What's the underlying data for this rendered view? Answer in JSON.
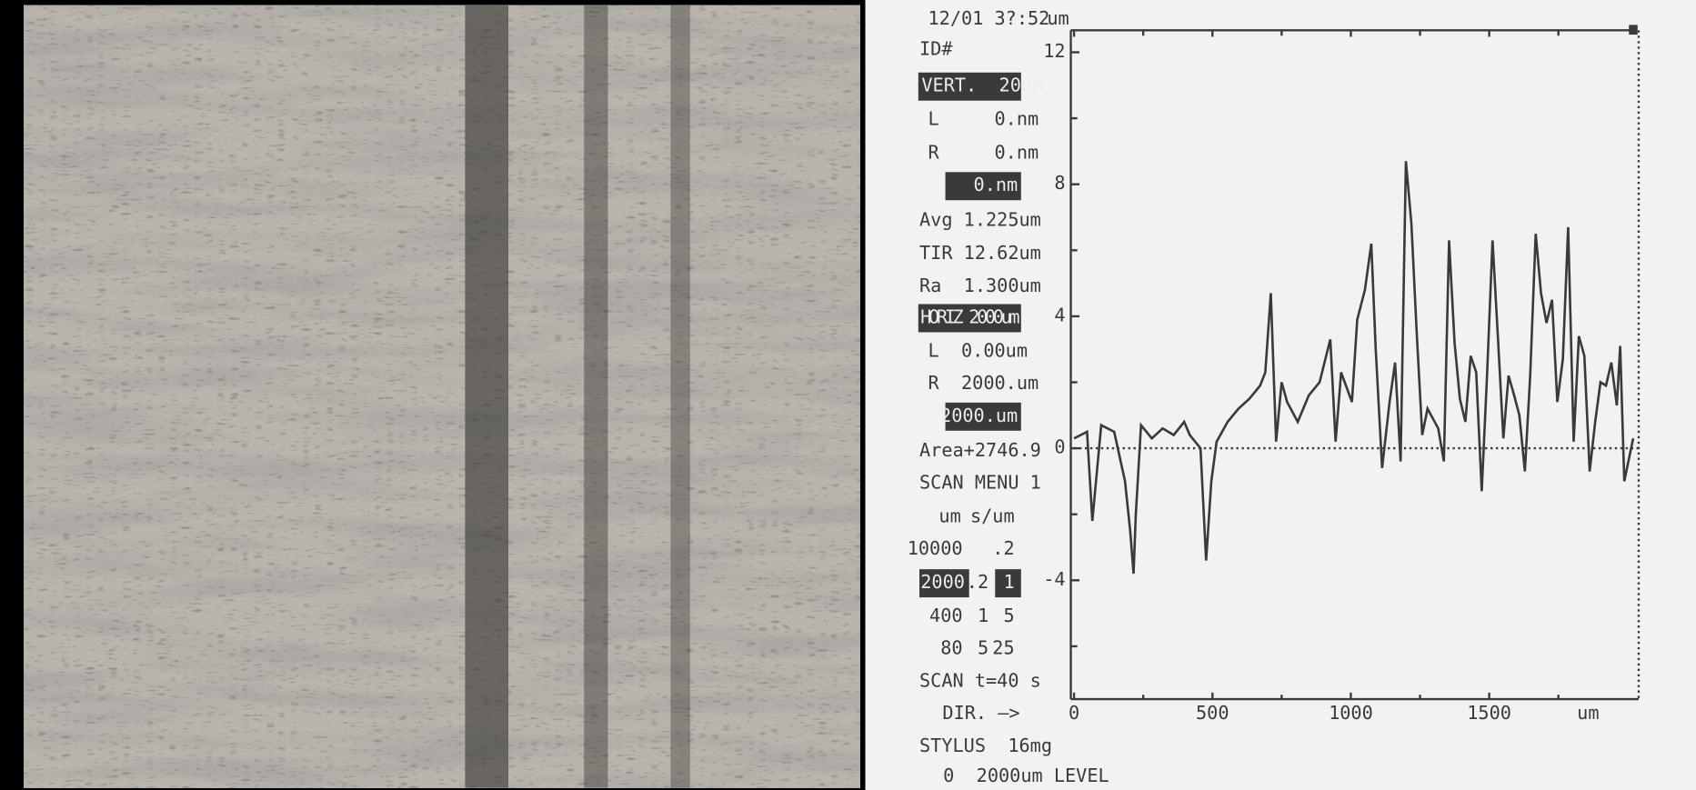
{
  "panel": {
    "timestamp": "12/01 3?:52",
    "id": "ID#",
    "vert": "VERT.  20um",
    "vert_l": "L     0.nm",
    "vert_r": "R     0.nm",
    "vert_diff": "0.nm",
    "avg": "Avg 1.225um",
    "tir": "TIR 12.62um",
    "ra": "Ra  1.300um",
    "horiz": "HORIZ 2000um",
    "horiz_l": "L  0.00um",
    "horiz_r": "R  2000.um",
    "horiz_diff": "2000.um",
    "area": "Area+2746.9",
    "scan_menu": "SCAN MENU 1",
    "scan_table": [
      [
        "um",
        "s/um"
      ],
      [
        "10000",
        ".2"
      ],
      [
        "2000",
        ".2",
        "1"
      ],
      [
        "400",
        "1",
        "5"
      ],
      [
        "80",
        "5",
        "25"
      ]
    ],
    "scan_time": "SCAN t=40 s",
    "direction": "DIR. —>",
    "stylus": "STYLUS  16mg",
    "level": "0  2000um LEVEL"
  },
  "chart_data": {
    "type": "line",
    "y_unit": "um",
    "x_unit": "um",
    "color": "#3a3a3a",
    "x": [
      0,
      47,
      66,
      98,
      145,
      184,
      203,
      215,
      223,
      242,
      281,
      320,
      360,
      398,
      418,
      457,
      477,
      496,
      515,
      555,
      594,
      633,
      672,
      691,
      711,
      730,
      750,
      770,
      808,
      848,
      887,
      926,
      945,
      965,
      1004,
      1023,
      1051,
      1074,
      1090,
      1113,
      1140,
      1160,
      1180,
      1199,
      1219,
      1238,
      1258,
      1277,
      1316,
      1336,
      1355,
      1375,
      1394,
      1414,
      1433,
      1453,
      1473,
      1492,
      1512,
      1531,
      1551,
      1570,
      1590,
      1609,
      1629,
      1648,
      1668,
      1687,
      1707,
      1727,
      1746,
      1766,
      1785,
      1805,
      1824,
      1844,
      1863,
      1883,
      1902,
      1922,
      1941,
      1961,
      1973,
      1988,
      2020
    ],
    "values": [
      0.3,
      0.5,
      -2.2,
      0.7,
      0.5,
      -1,
      -2.5,
      -3.8,
      -2,
      0.7,
      0.3,
      0.6,
      0.4,
      0.8,
      0.4,
      0,
      -3.4,
      -1,
      0.2,
      0.8,
      1.2,
      1.5,
      1.9,
      2.3,
      4.7,
      0.2,
      2,
      1.4,
      0.8,
      1.6,
      2,
      3.3,
      0.2,
      2.3,
      1.4,
      3.9,
      4.8,
      6.2,
      3,
      -0.6,
      1.4,
      2.6,
      -0.4,
      8.7,
      6.8,
      3.5,
      0.4,
      1.2,
      0.6,
      -0.4,
      6.3,
      3.2,
      1.5,
      0.8,
      2.8,
      2.3,
      -1.3,
      2.2,
      6.3,
      3.4,
      0.3,
      2.2,
      1.6,
      1,
      -0.7,
      2.2,
      6.5,
      4.7,
      3.8,
      4.5,
      1.4,
      2.7,
      6.7,
      0.2,
      3.4,
      2.8,
      -0.7,
      0.8,
      2,
      1.9,
      2.6,
      1.3,
      3.1,
      -1,
      0.3
    ],
    "xlim": [
      0,
      2040
    ],
    "ylim": [
      -7.6,
      12.6
    ],
    "xticks": [
      0,
      500,
      1000,
      1500
    ],
    "xminorticks": [
      250,
      750,
      1250,
      1750
    ],
    "yticks": [
      -4,
      0,
      4,
      8,
      12
    ],
    "yminorticks": [
      -6,
      -2,
      2,
      6,
      10
    ],
    "zero_line": true
  }
}
